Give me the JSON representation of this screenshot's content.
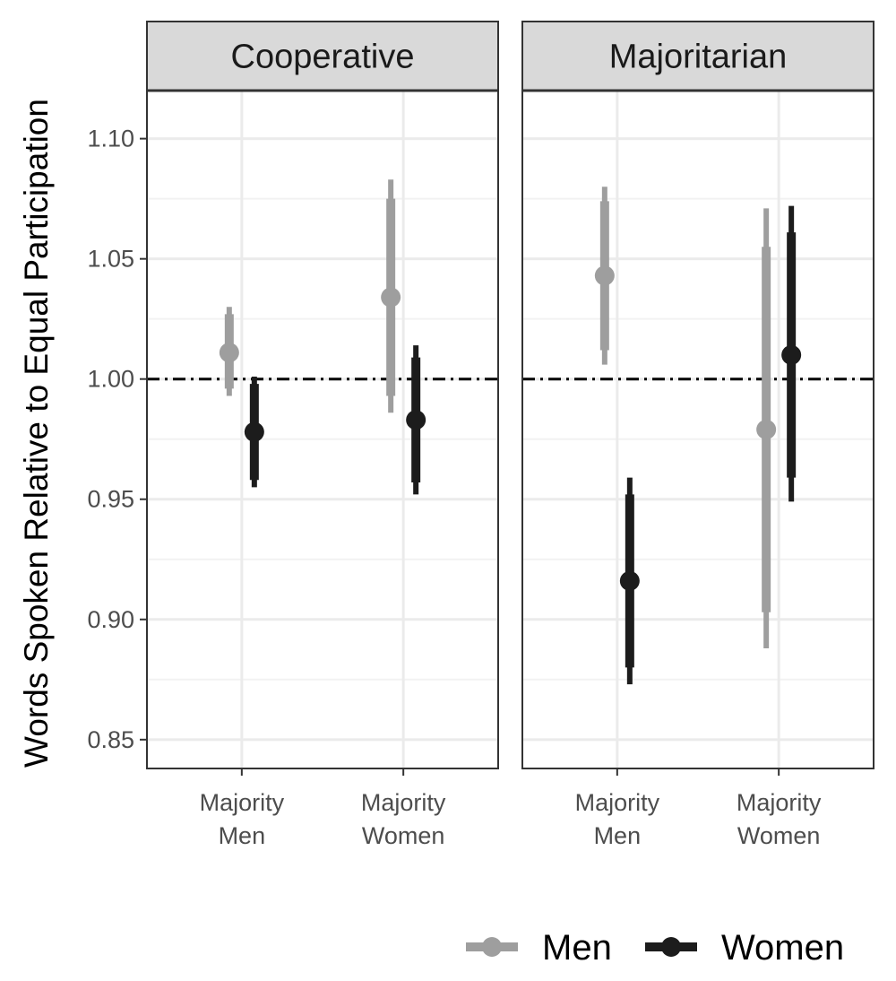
{
  "chart_data": {
    "type": "scatter",
    "ylabel": "Words Spoken Relative to Equal Participation",
    "ylim": [
      0.838,
      1.12
    ],
    "yticks": [
      "0.85",
      "0.90",
      "0.95",
      "1.00",
      "1.05",
      "1.10"
    ],
    "ytick_values": [
      0.85,
      0.9,
      0.95,
      1.0,
      1.05,
      1.1
    ],
    "reference_line": 1.0,
    "grid": true,
    "legend_position": "bottom-right",
    "categories": [
      {
        "line1": "Majority",
        "line2": "Men"
      },
      {
        "line1": "Majority",
        "line2": "Women"
      }
    ],
    "series": [
      {
        "name": "Men",
        "color": "#9e9e9e"
      },
      {
        "name": "Women",
        "color": "#1c1c1c"
      }
    ],
    "panels": [
      {
        "title": "Cooperative",
        "points": [
          {
            "category": 0,
            "series": 0,
            "estimate": 1.011,
            "inner": [
              0.996,
              1.027
            ],
            "outer": [
              0.993,
              1.03
            ]
          },
          {
            "category": 0,
            "series": 1,
            "estimate": 0.978,
            "inner": [
              0.958,
              0.998
            ],
            "outer": [
              0.955,
              1.001
            ]
          },
          {
            "category": 1,
            "series": 0,
            "estimate": 1.034,
            "inner": [
              0.993,
              1.075
            ],
            "outer": [
              0.986,
              1.083
            ]
          },
          {
            "category": 1,
            "series": 1,
            "estimate": 0.983,
            "inner": [
              0.957,
              1.009
            ],
            "outer": [
              0.952,
              1.014
            ]
          }
        ]
      },
      {
        "title": "Majoritarian",
        "points": [
          {
            "category": 0,
            "series": 0,
            "estimate": 1.043,
            "inner": [
              1.012,
              1.074
            ],
            "outer": [
              1.006,
              1.08
            ]
          },
          {
            "category": 0,
            "series": 1,
            "estimate": 0.916,
            "inner": [
              0.88,
              0.952
            ],
            "outer": [
              0.873,
              0.959
            ]
          },
          {
            "category": 1,
            "series": 0,
            "estimate": 0.979,
            "inner": [
              0.903,
              1.055
            ],
            "outer": [
              0.888,
              1.071
            ]
          },
          {
            "category": 1,
            "series": 1,
            "estimate": 1.01,
            "inner": [
              0.959,
              1.061
            ],
            "outer": [
              0.949,
              1.072
            ]
          }
        ]
      }
    ]
  }
}
